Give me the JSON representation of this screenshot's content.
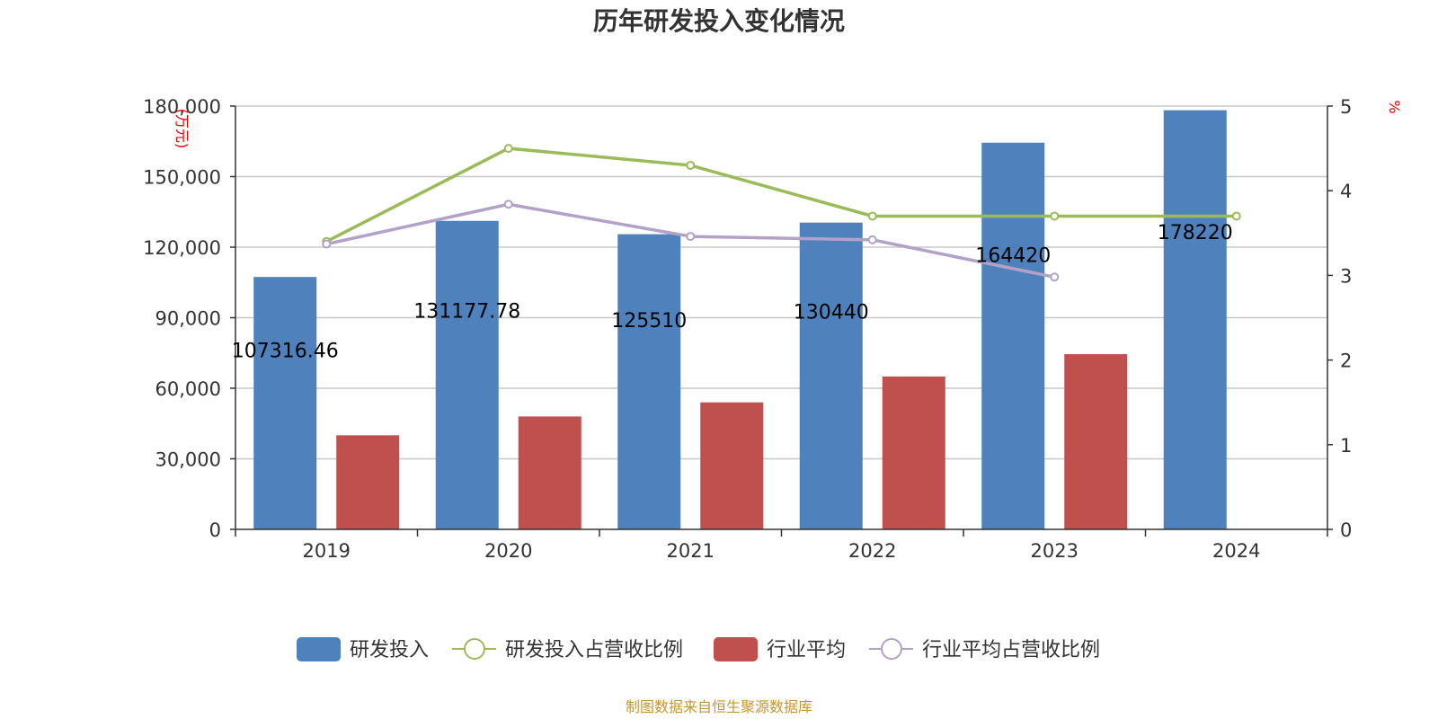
{
  "chart_data": {
    "type": "bar",
    "title": "历年研发投入变化情况",
    "categories": [
      "2019",
      "2020",
      "2021",
      "2022",
      "2023",
      "2024"
    ],
    "y_left": {
      "label": "(万元)",
      "min": 0,
      "max": 180000,
      "ticks": [
        "0",
        "30,000",
        "60,000",
        "90,000",
        "120,000",
        "150,000",
        "180,000"
      ]
    },
    "y_right": {
      "label": "%",
      "min": 0,
      "max": 5,
      "ticks": [
        "0",
        "1",
        "2",
        "3",
        "4",
        "5"
      ]
    },
    "grid": true,
    "legend_position": "bottom",
    "series": [
      {
        "name": "研发投入",
        "kind": "bar",
        "axis": "left",
        "color": "#4f81bd",
        "values": [
          107316.46,
          131177.78,
          125510,
          130440,
          164420,
          178220
        ],
        "labels": [
          "107316.46",
          "131177.78",
          "125510",
          "130440",
          "164420",
          "178220"
        ]
      },
      {
        "name": "研发投入占营收比例",
        "kind": "line",
        "axis": "right",
        "color": "#9bbb59",
        "values": [
          3.4,
          4.5,
          4.3,
          3.7,
          3.7,
          3.7
        ]
      },
      {
        "name": "行业平均",
        "kind": "bar",
        "axis": "left",
        "color": "#c0504d",
        "values": [
          40000,
          48000,
          54000,
          65000,
          74500,
          null
        ]
      },
      {
        "name": "行业平均占营收比例",
        "kind": "line",
        "axis": "right",
        "color": "#b3a2c7",
        "values": [
          3.37,
          3.84,
          3.46,
          3.42,
          2.98,
          null
        ]
      }
    ],
    "source": "制图数据来自恒生聚源数据库"
  }
}
